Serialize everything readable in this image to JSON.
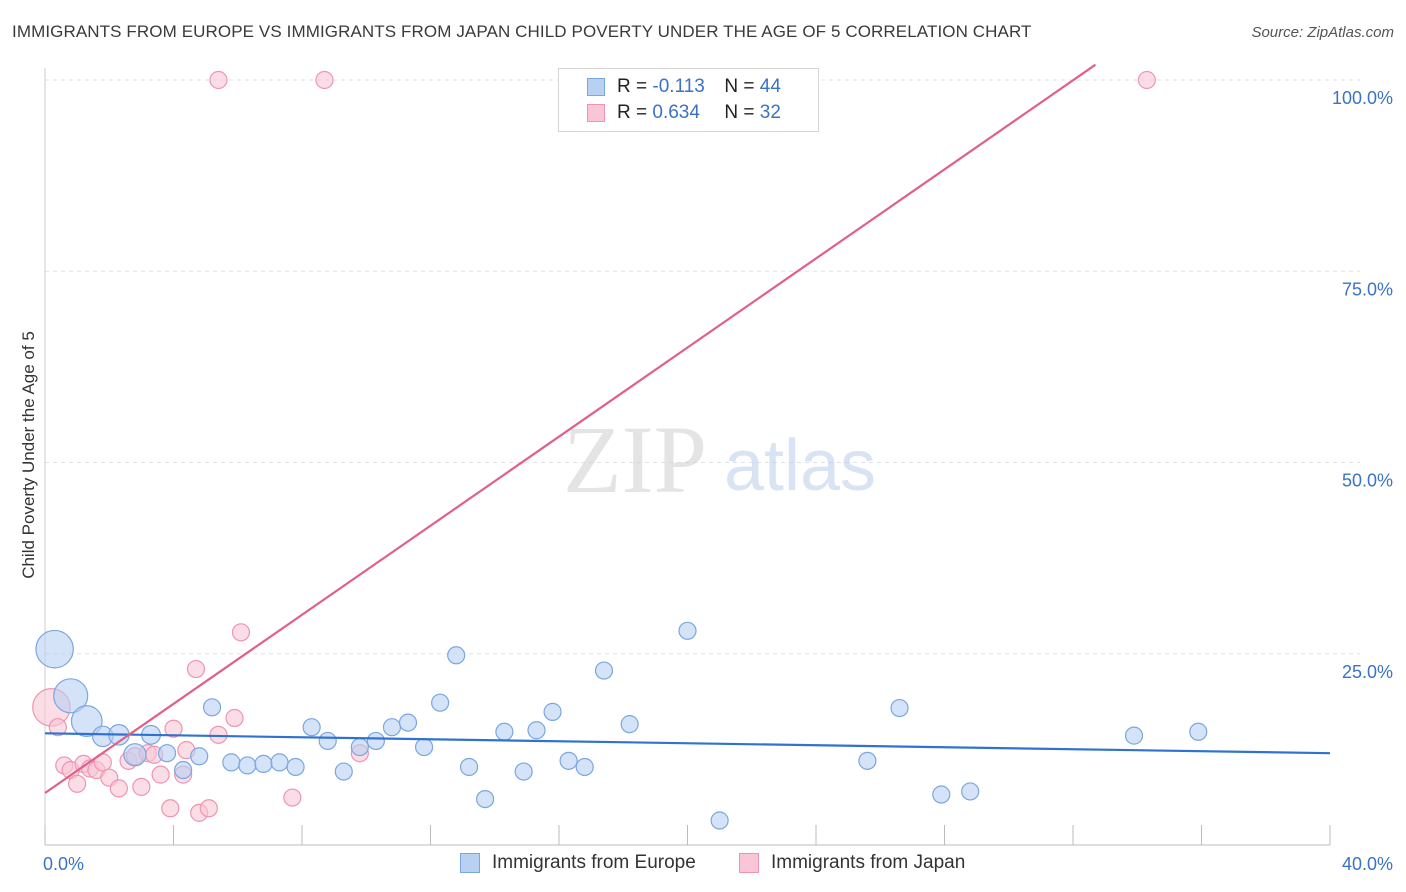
{
  "header": {
    "title": "IMMIGRANTS FROM EUROPE VS IMMIGRANTS FROM JAPAN CHILD POVERTY UNDER THE AGE OF 5 CORRELATION CHART",
    "source": "Source: ZipAtlas.com"
  },
  "legend": {
    "europe": {
      "r_label": "R =",
      "r_value": "-0.113",
      "n_label": "N =",
      "n_value": "44"
    },
    "japan": {
      "r_label": "R =",
      "r_value": "0.634",
      "n_label": "N =",
      "n_value": "32"
    }
  },
  "bottom_legend": {
    "europe": "Immigrants from Europe",
    "japan": "Immigrants from Japan"
  },
  "colors": {
    "europe_fill": "#b8d1f2",
    "europe_stroke": "#7aa7e0",
    "europe_line": "#2f72d0",
    "japan_fill": "#f9c6d6",
    "japan_stroke": "#ef94b2",
    "japan_line": "#e0608a",
    "axis_label": "#3a73c4",
    "grid": "#e2e2e2"
  },
  "chart_data": {
    "type": "scatter",
    "title": "IMMIGRANTS FROM EUROPE VS IMMIGRANTS FROM JAPAN CHILD POVERTY UNDER THE AGE OF 5 CORRELATION CHART",
    "xlabel": "",
    "ylabel": "Child Poverty Under the Age of 5",
    "xlim": [
      0,
      40
    ],
    "ylim": [
      0,
      102
    ],
    "x_tick_labels": [
      {
        "value": 0,
        "label": "0.0%"
      },
      {
        "value": 40,
        "label": "40.0%"
      }
    ],
    "y_tick_labels": [
      {
        "value": 25,
        "label": "25.0%"
      },
      {
        "value": 50,
        "label": "50.0%"
      },
      {
        "value": 75,
        "label": "75.0%"
      },
      {
        "value": 100,
        "label": "100.0%"
      }
    ],
    "watermark": {
      "zip": "ZIP",
      "atlas": "atlas"
    },
    "series": [
      {
        "name": "Immigrants from Europe",
        "r": -0.113,
        "n": 44,
        "trend": {
          "x0": 0,
          "y0": 14.6,
          "x1": 40,
          "y1": 12.0
        },
        "points": [
          [
            0.3,
            25.6,
            2.2
          ],
          [
            0.8,
            19.5,
            2.0
          ],
          [
            1.3,
            16.2,
            1.8
          ],
          [
            1.8,
            14.2,
            1.2
          ],
          [
            2.3,
            14.4,
            1.2
          ],
          [
            2.8,
            11.8,
            1.3
          ],
          [
            3.3,
            14.4,
            1.1
          ],
          [
            3.8,
            12.0,
            1.0
          ],
          [
            4.3,
            9.8,
            1.0
          ],
          [
            4.8,
            11.6,
            1.0
          ],
          [
            5.2,
            18.0,
            1.0
          ],
          [
            5.8,
            10.8,
            1.0
          ],
          [
            6.3,
            10.4,
            1.0
          ],
          [
            6.8,
            10.6,
            1.0
          ],
          [
            7.3,
            10.8,
            1.0
          ],
          [
            7.8,
            10.2,
            1.0
          ],
          [
            8.3,
            15.4,
            1.0
          ],
          [
            8.8,
            13.6,
            1.0
          ],
          [
            9.3,
            9.6,
            1.0
          ],
          [
            9.8,
            12.8,
            1.0
          ],
          [
            10.3,
            13.6,
            1.0
          ],
          [
            10.8,
            15.4,
            1.0
          ],
          [
            11.3,
            16.0,
            1.0
          ],
          [
            11.8,
            12.8,
            1.0
          ],
          [
            12.3,
            18.6,
            1.0
          ],
          [
            12.8,
            24.8,
            1.0
          ],
          [
            13.2,
            10.2,
            1.0
          ],
          [
            13.7,
            6.0,
            1.0
          ],
          [
            14.3,
            14.8,
            1.0
          ],
          [
            14.9,
            9.6,
            1.0
          ],
          [
            15.3,
            15.0,
            1.0
          ],
          [
            15.8,
            17.4,
            1.0
          ],
          [
            16.3,
            11.0,
            1.0
          ],
          [
            16.8,
            10.2,
            1.0
          ],
          [
            17.4,
            22.8,
            1.0
          ],
          [
            18.2,
            15.8,
            1.0
          ],
          [
            20.0,
            28.0,
            1.0
          ],
          [
            21.0,
            3.2,
            1.0
          ],
          [
            25.6,
            11.0,
            1.0
          ],
          [
            26.6,
            17.9,
            1.0
          ],
          [
            27.9,
            6.6,
            1.0
          ],
          [
            28.8,
            7.0,
            1.0
          ],
          [
            33.9,
            14.3,
            1.0
          ],
          [
            35.9,
            14.8,
            1.0
          ]
        ]
      },
      {
        "name": "Immigrants from Japan",
        "r": 0.634,
        "n": 32,
        "trend": {
          "x0": 0,
          "y0": 6.8,
          "x1": 32.7,
          "y1": 102
        },
        "points": [
          [
            0.2,
            18.0,
            2.2
          ],
          [
            0.4,
            15.4,
            1.0
          ],
          [
            0.6,
            10.4,
            1.0
          ],
          [
            0.8,
            9.8,
            1.0
          ],
          [
            1.0,
            8.0,
            1.0
          ],
          [
            1.2,
            10.6,
            1.0
          ],
          [
            1.4,
            10.0,
            1.0
          ],
          [
            1.6,
            9.8,
            1.0
          ],
          [
            1.8,
            10.8,
            1.0
          ],
          [
            2.0,
            8.8,
            1.0
          ],
          [
            2.3,
            7.4,
            1.0
          ],
          [
            2.6,
            11.0,
            1.0
          ],
          [
            2.8,
            11.6,
            1.0
          ],
          [
            3.0,
            7.6,
            1.0
          ],
          [
            3.2,
            12.0,
            1.0
          ],
          [
            3.4,
            11.8,
            1.0
          ],
          [
            3.6,
            9.2,
            1.0
          ],
          [
            3.9,
            4.8,
            1.0
          ],
          [
            4.0,
            15.2,
            1.0
          ],
          [
            4.3,
            9.2,
            1.0
          ],
          [
            4.4,
            12.4,
            1.0
          ],
          [
            4.7,
            23.0,
            1.0
          ],
          [
            4.8,
            4.2,
            1.0
          ],
          [
            5.1,
            4.8,
            1.0
          ],
          [
            5.4,
            14.4,
            1.0
          ],
          [
            5.9,
            16.6,
            1.0
          ],
          [
            6.1,
            27.8,
            1.0
          ],
          [
            7.7,
            6.2,
            1.0
          ],
          [
            9.8,
            12.0,
            1.0
          ],
          [
            5.4,
            100.0,
            1.0
          ],
          [
            8.7,
            100.0,
            1.0
          ],
          [
            34.3,
            100.0,
            1.0
          ]
        ]
      }
    ]
  }
}
